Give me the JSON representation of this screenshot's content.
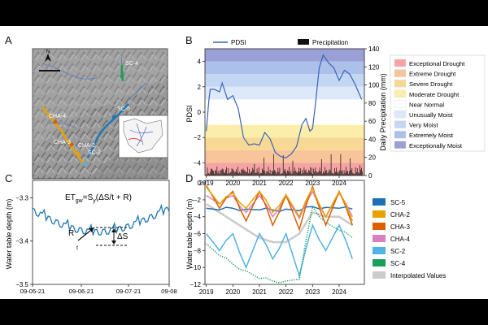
{
  "panels": {
    "a": "A",
    "b": "B",
    "c": "C",
    "d": "D"
  },
  "map": {
    "north_arrow": "N",
    "site_labels": [
      "SC-4",
      "SC-5",
      "CHA-4",
      "CHA-3",
      "CHA-2",
      "SC-2"
    ],
    "colors": {
      "sc5": "#1f77b4",
      "cha2": "#e8a200",
      "cha3": "#d95f02",
      "cha4": "#e377c2",
      "sc2": "#4fb3e6",
      "sc4": "#1a9e5a"
    }
  },
  "panel_b": {
    "legend_line": "PDSI",
    "legend_bar": "Precipitation",
    "y_left_label": "PDSI",
    "y_right_label": "Daily Precipitation (mm)",
    "y_left_ticks": [
      "4",
      "2",
      "0",
      "−2",
      "−4"
    ],
    "y_right_ticks": [
      "140",
      "120",
      "100",
      "80",
      "60",
      "40",
      "20",
      "0"
    ],
    "x_ticks": [
      "2019",
      "2020",
      "2021",
      "2022",
      "2023",
      "2024"
    ],
    "drought_legend": [
      {
        "label": "Exceptional Drought",
        "color": "#f5a3a3"
      },
      {
        "label": "Extreme Drought",
        "color": "#f8c49a"
      },
      {
        "label": "Severe Drought",
        "color": "#f8d895"
      },
      {
        "label": "Moderate Drought",
        "color": "#fbeeaa"
      },
      {
        "label": "Near Normal",
        "color": "#ffffff"
      },
      {
        "label": "Unusually Moist",
        "color": "#dde9f8"
      },
      {
        "label": "Very Moist",
        "color": "#c4d7f2"
      },
      {
        "label": "Extremely Moist",
        "color": "#acc0ea"
      },
      {
        "label": "Exceptionally Moist",
        "color": "#9a9fd6"
      }
    ]
  },
  "panel_c": {
    "equation": "ET",
    "eq_sub1": "gw",
    "eq_mid": "=S",
    "eq_sub2": "y",
    "eq_end": "(ΔS/t + R)",
    "r_label": "R",
    "ds_label": "ΔS",
    "t_label": "t",
    "y_label": "Water table depth (m)",
    "y_ticks": [
      "−3.3",
      "−3.4",
      "−3.5"
    ],
    "x_ticks": [
      "09-05-21",
      "09-06-21",
      "09-07-21",
      "09-08"
    ]
  },
  "panel_d": {
    "y_label": "Water table depth (m)",
    "y_ticks": [
      "0",
      "−2",
      "−4",
      "−6",
      "−8",
      "−10",
      "−12"
    ],
    "x_ticks": [
      "2019",
      "2020",
      "2021",
      "2022",
      "2023",
      "2024"
    ],
    "legend": [
      {
        "label": "SC-5",
        "color": "#1f6fb4"
      },
      {
        "label": "CHA-2",
        "color": "#e8a200"
      },
      {
        "label": "CHA-3",
        "color": "#d95f02"
      },
      {
        "label": "CHA-4",
        "color": "#d97fc0"
      },
      {
        "label": "SC-2",
        "color": "#4fb3e6"
      },
      {
        "label": "SC-4",
        "color": "#1a9e5a"
      },
      {
        "label": "Interpolated Values",
        "color": "#cccccc"
      }
    ]
  },
  "chart_data": [
    {
      "type": "line",
      "title": "",
      "x": [
        2019.0,
        2019.1,
        2019.15,
        2019.3,
        2019.5,
        2019.6,
        2019.8,
        2020.0,
        2020.2,
        2020.4,
        2020.6,
        2020.8,
        2021.0,
        2021.2,
        2021.4,
        2021.6,
        2021.8,
        2022.0,
        2022.2,
        2022.4,
        2022.6,
        2022.75,
        2022.9,
        2023.0,
        2023.1,
        2023.25,
        2023.4,
        2023.6,
        2023.8,
        2024.0,
        2024.2,
        2024.4,
        2024.6,
        2024.85
      ],
      "series": [
        {
          "name": "PDSI",
          "values": [
            -1.5,
            1.0,
            1.8,
            1.8,
            1.6,
            2.3,
            1.0,
            1.3,
            0.3,
            -2.0,
            -2.6,
            -2.5,
            -2.6,
            -1.6,
            -2.1,
            -3.2,
            -3.5,
            -3.6,
            -3.3,
            -2.7,
            -1.0,
            -0.5,
            -1.5,
            -1.3,
            0.5,
            3.5,
            4.5,
            3.9,
            3.5,
            2.5,
            3.3,
            3.0,
            2.2,
            1.0
          ]
        }
      ],
      "ylim": [
        -5,
        5
      ],
      "xlabel": "",
      "ylabel": "PDSI"
    },
    {
      "type": "line",
      "title": "",
      "xlabel": "",
      "ylabel": "Water table depth (m)",
      "x": [
        0,
        0.6,
        1.0,
        1.6,
        2.0,
        2.6,
        3.0,
        3.6
      ],
      "series": [
        {
          "name": "Water table",
          "values": [
            -3.33,
            -3.35,
            -3.31,
            -3.36,
            -3.32,
            -3.38,
            -3.35,
            -3.36
          ]
        }
      ],
      "ylim": [
        -3.5,
        -3.26
      ]
    },
    {
      "type": "line",
      "title": "",
      "xlabel": "",
      "ylabel": "Water table depth (m)",
      "ylim": [
        -12,
        0
      ],
      "x": [
        2019.0,
        2019.5,
        2020.0,
        2020.5,
        2021.0,
        2021.5,
        2022.0,
        2022.5,
        2023.0,
        2023.5,
        2024.0,
        2024.5
      ],
      "series": [
        {
          "name": "SC-5",
          "values": [
            -3.0,
            -3.2,
            -3.0,
            -3.1,
            -3.2,
            -3.2,
            -3.1,
            -3.3,
            -2.8,
            -2.9,
            -3.0,
            -3.1
          ]
        },
        {
          "name": "CHA-2",
          "values": [
            -0.5,
            -2.5,
            -1.2,
            -3.0,
            -1.0,
            -3.5,
            -1.4,
            -4.0,
            -0.6,
            -4.0,
            -1.0,
            -4.5
          ]
        },
        {
          "name": "CHA-3",
          "values": [
            -0.3,
            -3.0,
            -1.0,
            -4.5,
            -1.0,
            -5.0,
            -1.4,
            -5.5,
            -0.4,
            -5.0,
            -1.0,
            -5.0
          ]
        },
        {
          "name": "CHA-4",
          "values": [
            -1.5,
            -2.5,
            -1.5,
            -3.5,
            -1.5,
            -4.0,
            -1.6,
            -4.2,
            -1.0,
            -4.0,
            -1.2,
            -4.0
          ]
        },
        {
          "name": "SC-2",
          "values": [
            -6.0,
            -8.0,
            -6.0,
            -10.0,
            -6.0,
            -9.0,
            -6.0,
            -11.0,
            -5.0,
            -8.0,
            -5.0,
            -9.0
          ]
        },
        {
          "name": "SC-4",
          "values": [
            -7.2,
            -8.6,
            -9.6,
            -10.4,
            -11.3,
            -11.6,
            -11.6,
            -11.4,
            -2.8,
            -4.7,
            -5.6,
            -6.5
          ]
        },
        {
          "name": "Interpolated Values",
          "values": [
            -2.5,
            -3.5,
            -4.5,
            -5.5,
            -6.5,
            -7.0,
            -7.0,
            -6.0,
            -3.5,
            -4.0,
            -4.0,
            -5.0
          ]
        }
      ]
    }
  ]
}
